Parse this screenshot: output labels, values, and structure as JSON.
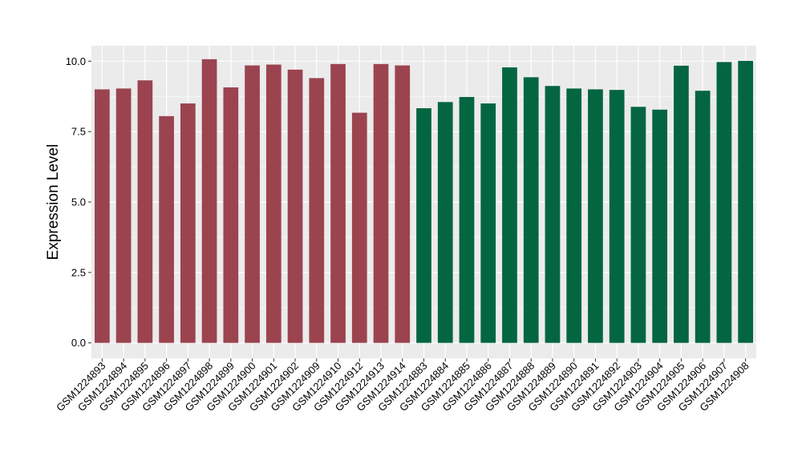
{
  "chart_data": {
    "type": "bar",
    "ylabel": "Expression Level",
    "xlabel": "",
    "ylim": [
      -0.55,
      10.55
    ],
    "yticks": [
      0.0,
      2.5,
      5.0,
      7.5,
      10.0
    ],
    "ytick_labels": [
      "0.0",
      "2.5",
      "5.0",
      "7.5",
      "10.0"
    ],
    "grid": true,
    "legend": "none",
    "colors": {
      "group1": "#9b4450",
      "group2": "#036641",
      "panel": "#ebebeb",
      "grid": "#ffffff"
    },
    "categories": [
      "GSM1224893",
      "GSM1224894",
      "GSM1224895",
      "GSM1224896",
      "GSM1224897",
      "GSM1224898",
      "GSM1224899",
      "GSM1224900",
      "GSM1224901",
      "GSM1224902",
      "GSM1224909",
      "GSM1224910",
      "GSM1224912",
      "GSM1224913",
      "GSM1224914",
      "GSM1224883",
      "GSM1224884",
      "GSM1224885",
      "GSM1224886",
      "GSM1224887",
      "GSM1224888",
      "GSM1224889",
      "GSM1224890",
      "GSM1224891",
      "GSM1224892",
      "GSM1224903",
      "GSM1224904",
      "GSM1224905",
      "GSM1224906",
      "GSM1224907",
      "GSM1224908"
    ],
    "values": [
      9.0,
      9.03,
      9.32,
      8.05,
      8.5,
      10.07,
      9.07,
      9.85,
      9.88,
      9.7,
      9.4,
      9.9,
      8.17,
      9.9,
      9.85,
      8.33,
      8.55,
      8.73,
      8.5,
      9.78,
      9.43,
      9.12,
      9.03,
      9.0,
      8.98,
      8.38,
      8.28,
      9.84,
      8.95,
      9.97,
      10.01
    ],
    "groups": [
      "group1",
      "group1",
      "group1",
      "group1",
      "group1",
      "group1",
      "group1",
      "group1",
      "group1",
      "group1",
      "group1",
      "group1",
      "group1",
      "group1",
      "group1",
      "group2",
      "group2",
      "group2",
      "group2",
      "group2",
      "group2",
      "group2",
      "group2",
      "group2",
      "group2",
      "group2",
      "group2",
      "group2",
      "group2",
      "group2",
      "group2"
    ]
  }
}
